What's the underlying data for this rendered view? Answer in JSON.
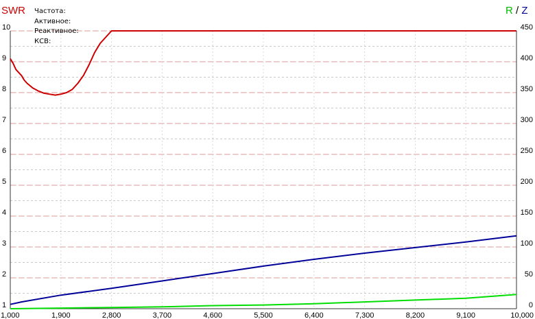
{
  "header": {
    "swr_label": "SWR",
    "r_label": "R",
    "separator": "/",
    "z_label": "Z",
    "info": [
      "Частота:",
      "Активное:",
      "Реактивное:",
      "КСВ:"
    ]
  },
  "colors": {
    "swr": "#cc0000",
    "r": "#00dd00",
    "z": "#000099",
    "grid": "#c8c8c8",
    "grid_red": "#dd9999",
    "axis": "#333333"
  },
  "chart_data": {
    "type": "line",
    "title": "",
    "xlabel": "",
    "xlim": [
      1000,
      10000
    ],
    "x_ticks": [
      1000,
      1900,
      2800,
      3700,
      4600,
      5500,
      6400,
      7300,
      8200,
      9100,
      10000
    ],
    "x_tick_labels": [
      "1,000",
      "1,900",
      "2,800",
      "3,700",
      "4,600",
      "5,500",
      "6,400",
      "7,300",
      "8,200",
      "9,100",
      "10,000"
    ],
    "ylim_left": [
      1,
      10
    ],
    "y_ticks_left": [
      1,
      2,
      3,
      4,
      5,
      6,
      7,
      8,
      9,
      10
    ],
    "ylabel_left": "SWR",
    "ylim_right": [
      0,
      450
    ],
    "y_ticks_right": [
      0,
      50,
      100,
      150,
      200,
      250,
      300,
      350,
      400,
      450
    ],
    "ylabel_right": "R / Z",
    "grid": true,
    "series": [
      {
        "name": "SWR",
        "axis": "left",
        "color": "#cc0000",
        "x": [
          1000,
          1050,
          1100,
          1200,
          1250,
          1300,
          1400,
          1500,
          1600,
          1700,
          1800,
          1900,
          2000,
          2100,
          2200,
          2300,
          2400,
          2500,
          2600,
          2700,
          2800,
          2900,
          10000
        ],
        "y": [
          9.1,
          8.95,
          8.75,
          8.55,
          8.4,
          8.3,
          8.15,
          8.05,
          7.98,
          7.95,
          7.92,
          7.95,
          8.0,
          8.1,
          8.3,
          8.55,
          8.9,
          9.3,
          9.6,
          9.8,
          10.0,
          10.0,
          10.0
        ]
      },
      {
        "name": "Z",
        "axis": "right",
        "color": "#000099",
        "x": [
          1000,
          1200,
          1900,
          2800,
          3700,
          4600,
          5500,
          6400,
          7300,
          8200,
          9100,
          10000
        ],
        "y": [
          7,
          11,
          22,
          33,
          45,
          57,
          69,
          80,
          90,
          99,
          108,
          118
        ]
      },
      {
        "name": "R",
        "axis": "right",
        "color": "#00dd00",
        "x": [
          1000,
          1900,
          2800,
          3700,
          4600,
          5500,
          6400,
          7300,
          8200,
          9100,
          10000
        ],
        "y": [
          0,
          1,
          2,
          3,
          5,
          6,
          8,
          11,
          14,
          17,
          23
        ]
      }
    ]
  }
}
